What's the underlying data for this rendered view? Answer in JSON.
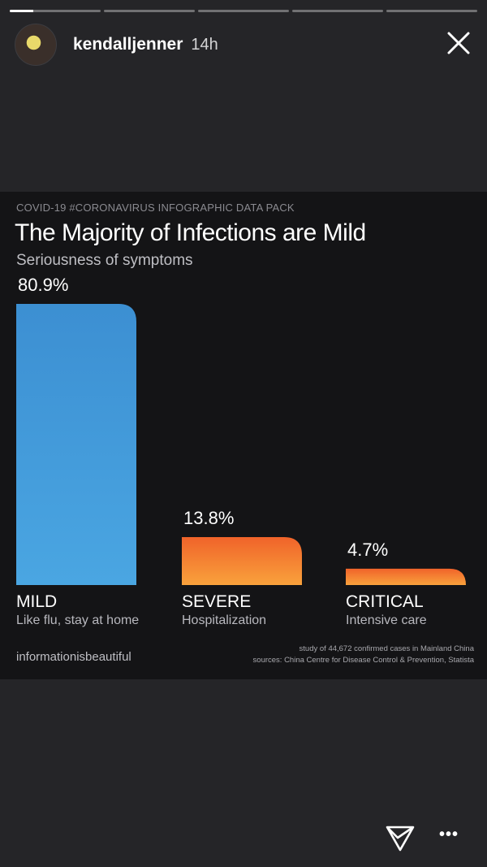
{
  "story": {
    "progress_segments": [
      1,
      0,
      0,
      0,
      0
    ],
    "first_segment_progress": 0.26
  },
  "header": {
    "username": "kendalljenner",
    "time": "14h",
    "avatar_icon": "avatar-photo",
    "close_icon": "close-icon"
  },
  "infographic": {
    "kicker": "COVID-19 #CORONAVIRUS INFOGRAPHIC DATA PACK",
    "title": "The Majority of Infections are Mild",
    "subtitle": "Seriousness of symptoms",
    "credit": "informationisbeautiful",
    "source_line1": "study of 44,672 confirmed cases in Mainland China",
    "source_line2": "sources: China Centre for Disease Control & Prevention, Statista"
  },
  "chart_data": {
    "type": "bar",
    "title": "The Majority of Infections are Mild",
    "subtitle": "Seriousness of symptoms",
    "categories": [
      "MILD",
      "SEVERE",
      "CRITICAL"
    ],
    "descriptions": [
      "Like flu, stay at home",
      "Hospitalization",
      "Intensive care"
    ],
    "values": [
      80.9,
      13.8,
      4.7
    ],
    "value_labels": [
      "80.9%",
      "13.8%",
      "4.7%"
    ],
    "colors": [
      "#3f97d8",
      "#f47c2a",
      "#f47c2a"
    ],
    "ylim": [
      0,
      80.9
    ],
    "grid": false
  },
  "footer": {
    "share_icon": "send-icon",
    "more_label": "•••"
  }
}
